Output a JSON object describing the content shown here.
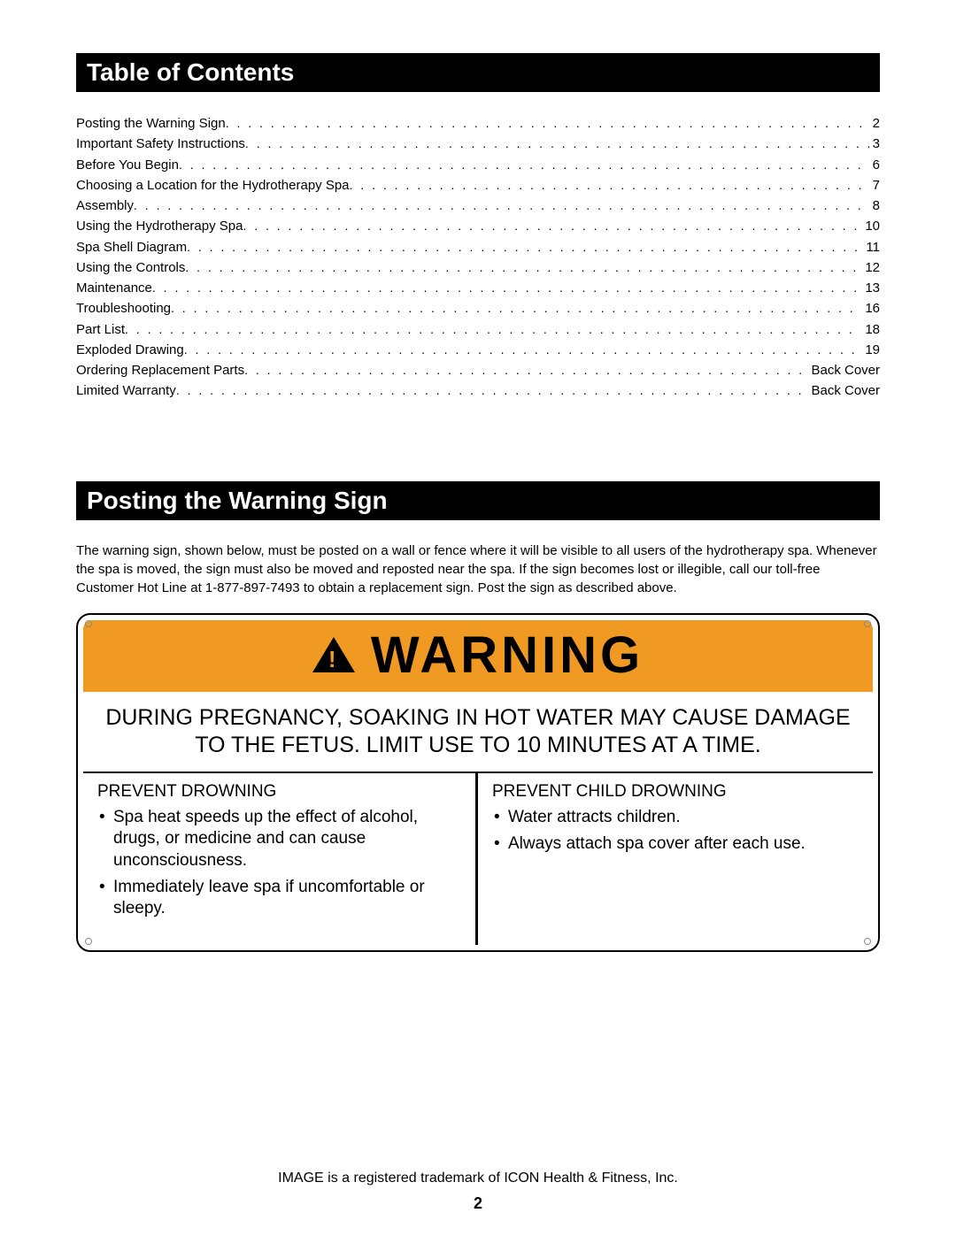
{
  "colors": {
    "header_bg": "#000000",
    "header_text": "#ffffff",
    "warning_banner_bg": "#f09a24",
    "warning_border": "#000000",
    "body_text": "#000000",
    "page_bg": "#ffffff"
  },
  "typography": {
    "base_family": "Arial, Helvetica, sans-serif",
    "section_header_size_pt": 21,
    "toc_size_pt": 11,
    "body_size_pt": 11,
    "warning_word_size_pt": 44,
    "pregnancy_size_pt": 19,
    "prevent_size_pt": 14
  },
  "toc": {
    "header": "Table of Contents",
    "items": [
      {
        "label": "Posting the Warning Sign",
        "page": "2"
      },
      {
        "label": "Important Safety Instructions",
        "page": "3"
      },
      {
        "label": "Before You Begin",
        "page": "6"
      },
      {
        "label": "Choosing a Location for the Hydrotherapy Spa",
        "page": "7"
      },
      {
        "label": "Assembly",
        "page": "8"
      },
      {
        "label": "Using the Hydrotherapy Spa",
        "page": "10"
      },
      {
        "label": "Spa Shell Diagram",
        "page": "11"
      },
      {
        "label": "Using the Controls",
        "page": "12"
      },
      {
        "label": "Maintenance",
        "page": "13"
      },
      {
        "label": "Troubleshooting",
        "page": "16"
      },
      {
        "label": "Part List",
        "page": "18"
      },
      {
        "label": "Exploded Drawing",
        "page": "19"
      },
      {
        "label": "Ordering Replacement Parts",
        "page": "Back Cover"
      },
      {
        "label": "Limited Warranty",
        "page": "Back Cover"
      }
    ]
  },
  "posting": {
    "header": "Posting the Warning Sign",
    "paragraph": "The warning sign, shown below, must be posted on a wall or fence where it will be visible to all users of the hydrotherapy spa. Whenever the spa is moved, the sign must also be moved and reposted near the spa. If the sign becomes lost or illegible, call our toll-free Customer Hot Line at 1-877-897-7493 to obtain a replacement sign. Post the sign as described above."
  },
  "warning_sign": {
    "banner_word": "WARNING",
    "pregnancy_text": "DURING PREGNANCY, SOAKING IN HOT WATER MAY CAUSE DAMAGE TO THE FETUS. LIMIT USE TO 10 MINUTES AT A TIME.",
    "left": {
      "title": "PREVENT DROWNING",
      "bullets": [
        "Spa heat speeds up the effect of alcohol, drugs, or medicine and can cause unconsciousness.",
        "Immediately leave spa if uncomfortable or sleepy."
      ]
    },
    "right": {
      "title": "PREVENT CHILD DROWNING",
      "bullets": [
        "Water attracts children.",
        "Always attach spa cover after each use."
      ]
    }
  },
  "footer": {
    "trademark": "IMAGE is a registered trademark of ICON Health & Fitness, Inc.",
    "page_number": "2"
  }
}
